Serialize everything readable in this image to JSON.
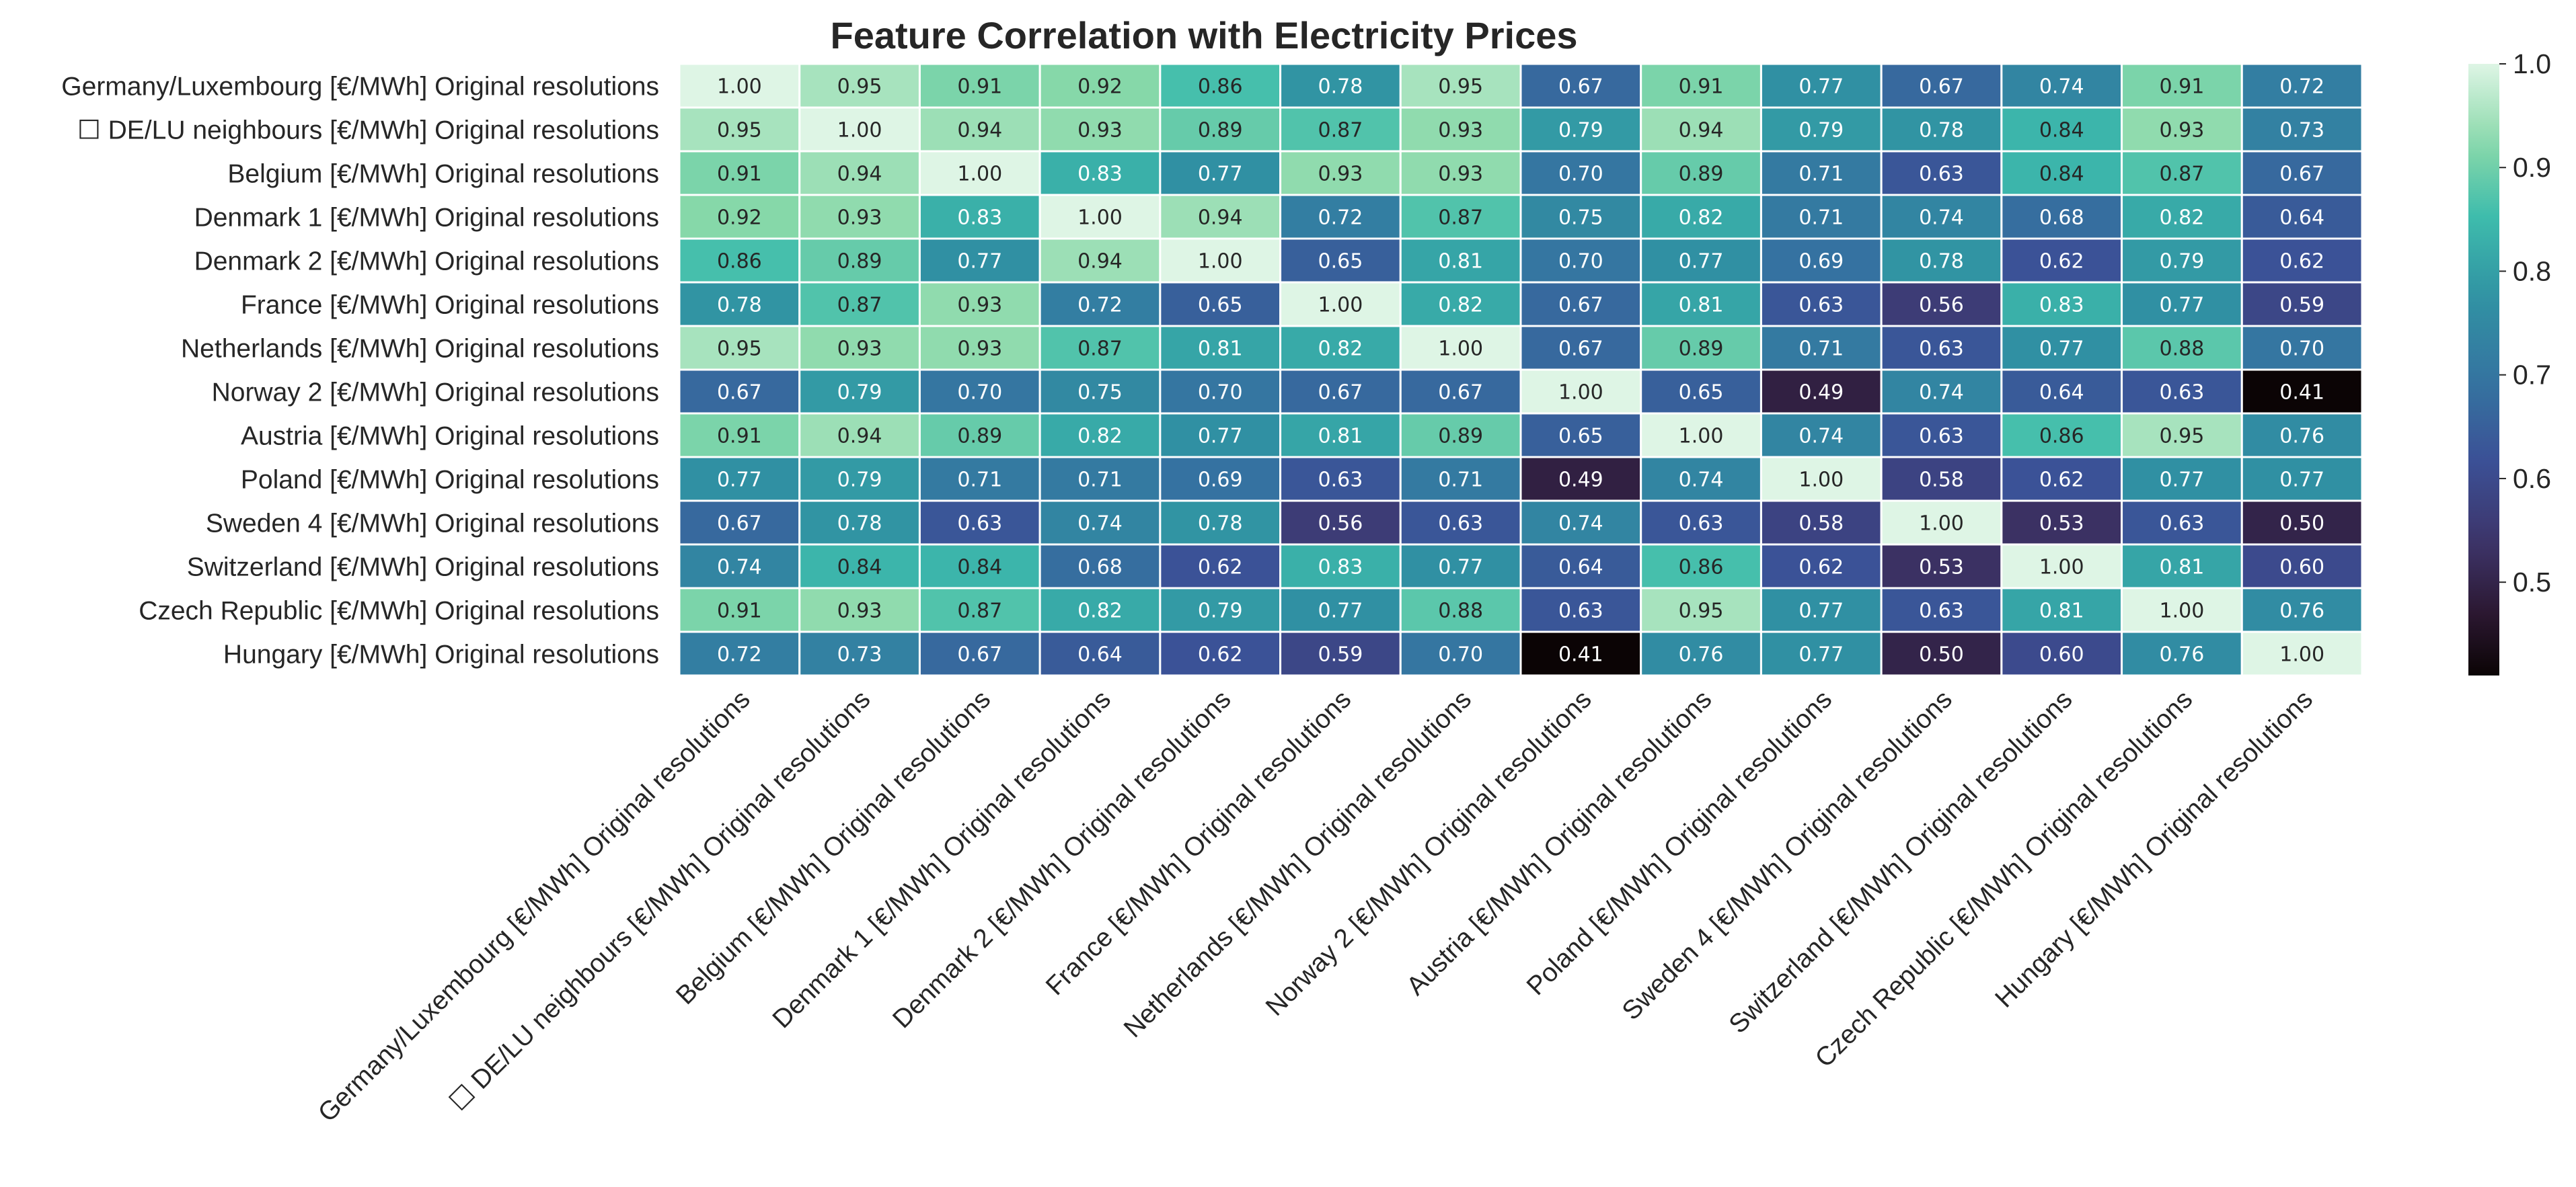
{
  "chart_data": {
    "type": "heatmap",
    "title": "Feature Correlation with Electricity Prices",
    "rows": [
      "Germany/Luxembourg [€/MWh] Original resolutions",
      "☐ DE/LU neighbours [€/MWh] Original resolutions",
      "Belgium [€/MWh] Original resolutions",
      "Denmark 1 [€/MWh] Original resolutions",
      "Denmark 2 [€/MWh] Original resolutions",
      "France [€/MWh] Original resolutions",
      "Netherlands [€/MWh] Original resolutions",
      "Norway 2 [€/MWh] Original resolutions",
      "Austria [€/MWh] Original resolutions",
      "Poland [€/MWh] Original resolutions",
      "Sweden 4 [€/MWh] Original resolutions",
      "Switzerland [€/MWh] Original resolutions",
      "Czech Republic [€/MWh] Original resolutions",
      "Hungary [€/MWh] Original resolutions"
    ],
    "columns": [
      "Germany/Luxembourg [€/MWh] Original resolutions",
      "☐ DE/LU neighbours [€/MWh] Original resolutions",
      "Belgium [€/MWh] Original resolutions",
      "Denmark 1 [€/MWh] Original resolutions",
      "Denmark 2 [€/MWh] Original resolutions",
      "France [€/MWh] Original resolutions",
      "Netherlands [€/MWh] Original resolutions",
      "Norway 2 [€/MWh] Original resolutions",
      "Austria [€/MWh] Original resolutions",
      "Poland [€/MWh] Original resolutions",
      "Sweden 4 [€/MWh] Original resolutions",
      "Switzerland [€/MWh] Original resolutions",
      "Czech Republic [€/MWh] Original resolutions",
      "Hungary [€/MWh] Original resolutions"
    ],
    "values": [
      [
        1.0,
        0.95,
        0.91,
        0.92,
        0.86,
        0.78,
        0.95,
        0.67,
        0.91,
        0.77,
        0.67,
        0.74,
        0.91,
        0.72
      ],
      [
        0.95,
        1.0,
        0.94,
        0.93,
        0.89,
        0.87,
        0.93,
        0.79,
        0.94,
        0.79,
        0.78,
        0.84,
        0.93,
        0.73
      ],
      [
        0.91,
        0.94,
        1.0,
        0.83,
        0.77,
        0.93,
        0.93,
        0.7,
        0.89,
        0.71,
        0.63,
        0.84,
        0.87,
        0.67
      ],
      [
        0.92,
        0.93,
        0.83,
        1.0,
        0.94,
        0.72,
        0.87,
        0.75,
        0.82,
        0.71,
        0.74,
        0.68,
        0.82,
        0.64
      ],
      [
        0.86,
        0.89,
        0.77,
        0.94,
        1.0,
        0.65,
        0.81,
        0.7,
        0.77,
        0.69,
        0.78,
        0.62,
        0.79,
        0.62
      ],
      [
        0.78,
        0.87,
        0.93,
        0.72,
        0.65,
        1.0,
        0.82,
        0.67,
        0.81,
        0.63,
        0.56,
        0.83,
        0.77,
        0.59
      ],
      [
        0.95,
        0.93,
        0.93,
        0.87,
        0.81,
        0.82,
        1.0,
        0.67,
        0.89,
        0.71,
        0.63,
        0.77,
        0.88,
        0.7
      ],
      [
        0.67,
        0.79,
        0.7,
        0.75,
        0.7,
        0.67,
        0.67,
        1.0,
        0.65,
        0.49,
        0.74,
        0.64,
        0.63,
        0.41
      ],
      [
        0.91,
        0.94,
        0.89,
        0.82,
        0.77,
        0.81,
        0.89,
        0.65,
        1.0,
        0.74,
        0.63,
        0.86,
        0.95,
        0.76
      ],
      [
        0.77,
        0.79,
        0.71,
        0.71,
        0.69,
        0.63,
        0.71,
        0.49,
        0.74,
        1.0,
        0.58,
        0.62,
        0.77,
        0.77
      ],
      [
        0.67,
        0.78,
        0.63,
        0.74,
        0.78,
        0.56,
        0.63,
        0.74,
        0.63,
        0.58,
        1.0,
        0.53,
        0.63,
        0.5
      ],
      [
        0.74,
        0.84,
        0.84,
        0.68,
        0.62,
        0.83,
        0.77,
        0.64,
        0.86,
        0.62,
        0.53,
        1.0,
        0.81,
        0.6
      ],
      [
        0.91,
        0.93,
        0.87,
        0.82,
        0.79,
        0.77,
        0.88,
        0.63,
        0.95,
        0.77,
        0.63,
        0.81,
        1.0,
        0.76
      ],
      [
        0.72,
        0.73,
        0.67,
        0.64,
        0.62,
        0.59,
        0.7,
        0.41,
        0.76,
        0.77,
        0.5,
        0.6,
        0.76,
        1.0
      ]
    ],
    "value_format": "0.00",
    "colorscale": "mako",
    "vmin": 0.41,
    "vmax": 1.0,
    "colorbar": {
      "ticks": [
        0.5,
        0.6,
        0.7,
        0.8,
        0.9,
        1.0
      ],
      "tick_labels": [
        "0.5",
        "0.6",
        "0.7",
        "0.8",
        "0.9",
        "1.0"
      ]
    },
    "xtick_rotation_deg": 45,
    "grid_line_color": "#ffffff"
  }
}
